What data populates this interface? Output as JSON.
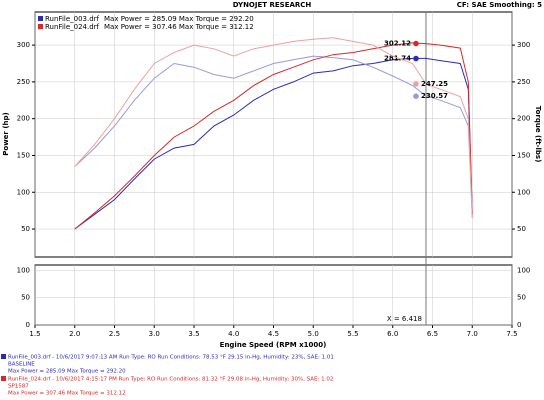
{
  "chart_data": [
    {
      "type": "line",
      "title": "DYNOJET RESEARCH",
      "subtitle": "CF: SAE  Smoothing: 5",
      "ylabel": "Power (hp)",
      "y2label": "Torque (ft-lbs)",
      "x": [
        2.0,
        2.25,
        2.5,
        2.75,
        3.0,
        3.25,
        3.5,
        3.75,
        4.0,
        4.25,
        4.5,
        4.75,
        5.0,
        5.25,
        5.5,
        5.75,
        6.0,
        6.25,
        6.418,
        6.6,
        6.85,
        6.95,
        7.0
      ],
      "series": [
        {
          "name": "RunFile_003.drf",
          "legend_text": "Max Power = 285.09     Max Torque = 292.20",
          "color": "#2b2bb8",
          "values": [
            50,
            70,
            90,
            118,
            145,
            160,
            165,
            190,
            205,
            225,
            240,
            250,
            262,
            265,
            272,
            275,
            280,
            282,
            282,
            279,
            275,
            240,
            70
          ],
          "cursor_value": 281.74
        },
        {
          "name": "RunFile_003.drf Torque",
          "color": "#9a9ad8",
          "axis": "y2",
          "values": [
            135,
            160,
            190,
            225,
            255,
            275,
            270,
            260,
            255,
            265,
            275,
            280,
            285,
            283,
            280,
            270,
            258,
            245,
            231,
            225,
            215,
            190,
            65
          ],
          "cursor_value": 230.57
        },
        {
          "name": "RunFile_024.drf",
          "legend_text": "Max Power = 307.46     Max Torque = 312.12",
          "color": "#d42a2a",
          "values": [
            50,
            72,
            95,
            122,
            150,
            175,
            190,
            210,
            225,
            245,
            260,
            270,
            280,
            287,
            290,
            295,
            300,
            303,
            302,
            300,
            296,
            250,
            70
          ],
          "cursor_value": 302.12
        },
        {
          "name": "RunFile_024.drf Torque",
          "color": "#eea0a0",
          "axis": "y2",
          "values": [
            135,
            165,
            200,
            240,
            275,
            290,
            300,
            295,
            285,
            295,
            300,
            305,
            308,
            310,
            305,
            300,
            285,
            275,
            247,
            240,
            230,
            200,
            65
          ],
          "cursor_value": 247.25
        }
      ],
      "cursor_x": 6.418,
      "cursor_label": "X = 6.418",
      "xlabel": "Engine Speed (RPM x1000)",
      "xlim": [
        1.5,
        7.5
      ],
      "xticks": [
        1.5,
        {
          "value": 2,
          "label": "2.0"
        },
        2.5,
        {
          "value": 3,
          "label": "3.0"
        },
        3.5,
        {
          "value": 4,
          "label": "4.0"
        },
        4.5,
        {
          "value": 5,
          "label": "5.0"
        },
        5.5,
        {
          "value": 6,
          "label": "6.0"
        },
        6.5,
        {
          "value": 7,
          "label": "7.0"
        },
        7.5
      ],
      "ylim": [
        12,
        345
      ],
      "yticks": [
        50,
        100,
        150,
        200,
        250,
        300
      ],
      "y2lim": [
        12,
        345
      ],
      "y2ticks": [
        50,
        100,
        150,
        200,
        250,
        300
      ],
      "grid": true
    },
    {
      "type": "line",
      "series": [],
      "ylim": [
        0,
        110
      ],
      "yticks": [
        0,
        50,
        100
      ],
      "grid": true
    }
  ],
  "footer": [
    {
      "color": "#2b2bb8",
      "lines": [
        "RunFile_003.drf - 10/6/2017 9:07:13 AM  Run Type: RO  Run Conditions: 78.53 °F 29.15 in-Hg,  Humidity: 23%, SAE: 1.01",
        "BASELINE",
        "Max Power = 285.09  Max Torque = 292.20"
      ]
    },
    {
      "color": "#d42a2a",
      "lines": [
        "RunFile_024.drf - 10/6/2017 4:15:17 PM  Run Type: RO  Run Conditions: 81.32 °F 29.08 in-Hg,  Humidity: 30%, SAE: 1.02",
        "SP1587",
        "Max Power = 307.46  Max Torque = 312.12"
      ]
    }
  ]
}
